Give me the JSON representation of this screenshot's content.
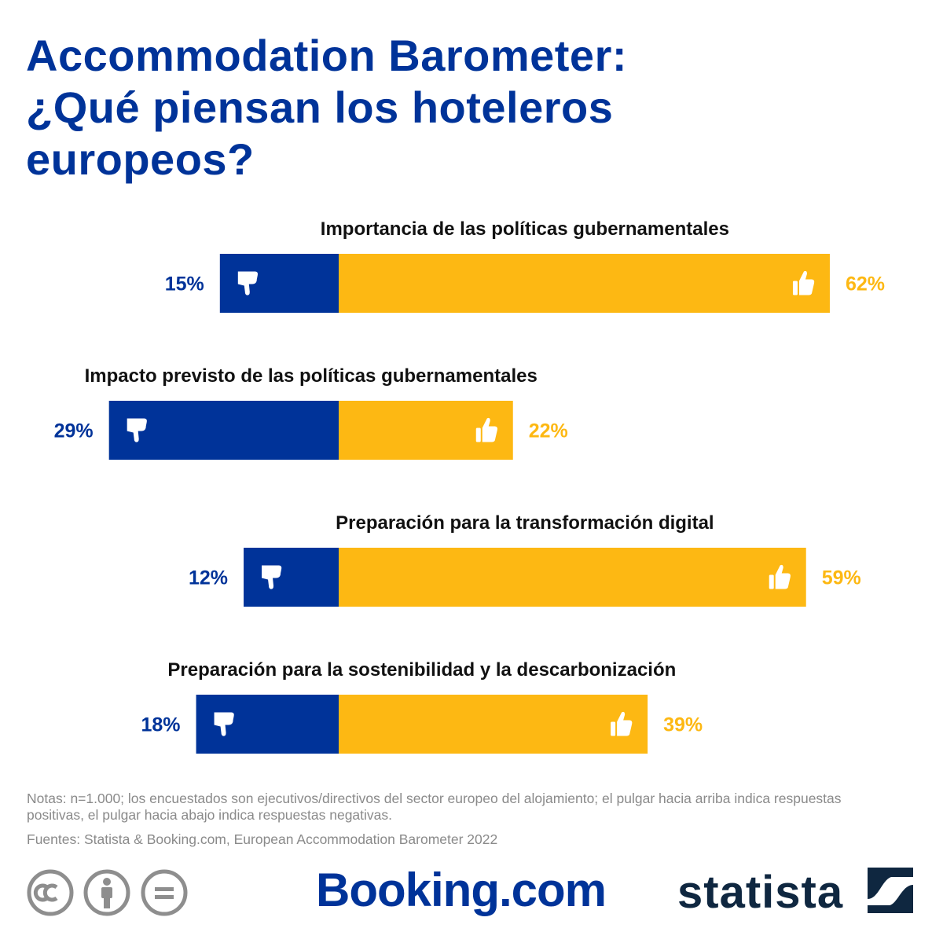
{
  "title": {
    "line1": "Accommodation Barometer:",
    "line2": "¿Qué piensan los hoteleros",
    "line3": "europeos?"
  },
  "chart_data": {
    "type": "bar",
    "orientation": "horizontal-diverging",
    "categories": [
      "Importancia de las políticas gubernamentales",
      "Impacto previsto de las políticas gubernamentales",
      "Preparación para la transformación digital",
      "Preparación para la sostenibilidad y la descarbonización"
    ],
    "series": [
      {
        "key": "negative",
        "icon": "thumbs-down-icon",
        "color": "#003399",
        "values": [
          15,
          29,
          12,
          18
        ]
      },
      {
        "key": "positive",
        "icon": "thumbs-up-icon",
        "color": "#FDB813",
        "values": [
          62,
          22,
          59,
          39
        ]
      }
    ],
    "value_suffix": "%"
  },
  "notes": "Notas: n=1.000; los encuestados son ejecutivos/directivos del sector europeo del alojamiento; el pulgar hacia arriba indica respuestas positivas, el pulgar hacia abajo indica respuestas negativas.",
  "source": "Fuentes: Statista & Booking.com, European Accommodation Barometer 2022",
  "logos": {
    "booking": "Booking.com",
    "statista": "statista",
    "license_icons": [
      "cc-icon",
      "attribution-icon",
      "no-derivatives-icon"
    ]
  }
}
